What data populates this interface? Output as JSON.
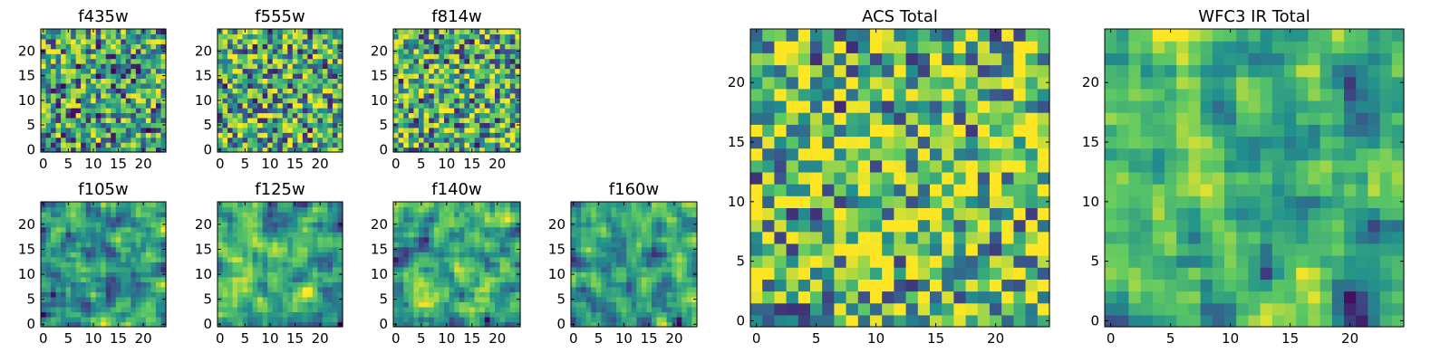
{
  "chart_data": [
    {
      "type": "heatmap",
      "title": "f435w",
      "grid": 25,
      "seed": 11,
      "xticks": [
        "0",
        "5",
        "10",
        "15",
        "20"
      ],
      "yticks": [
        "0",
        "5",
        "10",
        "15",
        "20"
      ],
      "smooth": false,
      "bias": 0.0,
      "xlim": [
        0,
        25
      ],
      "ylim": [
        0,
        25
      ]
    },
    {
      "type": "heatmap",
      "title": "f555w",
      "grid": 25,
      "seed": 23,
      "xticks": [
        "0",
        "5",
        "10",
        "15",
        "20"
      ],
      "yticks": [
        "0",
        "5",
        "10",
        "15",
        "20"
      ],
      "smooth": false,
      "bias": 0.05,
      "xlim": [
        0,
        25
      ],
      "ylim": [
        0,
        25
      ]
    },
    {
      "type": "heatmap",
      "title": "f814w",
      "grid": 25,
      "seed": 37,
      "xticks": [
        "0",
        "5",
        "10",
        "15",
        "20"
      ],
      "yticks": [
        "0",
        "5",
        "10",
        "15",
        "20"
      ],
      "smooth": false,
      "bias": 0.05,
      "xlim": [
        0,
        25
      ],
      "ylim": [
        0,
        25
      ]
    },
    {
      "type": "heatmap",
      "title": "f105w",
      "grid": 25,
      "seed": 41,
      "xticks": [
        "0",
        "5",
        "10",
        "15",
        "20"
      ],
      "yticks": [
        "0",
        "5",
        "10",
        "15",
        "20"
      ],
      "smooth": true,
      "bias": 0.0,
      "xlim": [
        0,
        25
      ],
      "ylim": [
        0,
        25
      ]
    },
    {
      "type": "heatmap",
      "title": "f125w",
      "grid": 25,
      "seed": 53,
      "xticks": [
        "0",
        "5",
        "10",
        "15",
        "20"
      ],
      "yticks": [
        "0",
        "5",
        "10",
        "15",
        "20"
      ],
      "smooth": true,
      "bias": 0.0,
      "xlim": [
        0,
        25
      ],
      "ylim": [
        0,
        25
      ]
    },
    {
      "type": "heatmap",
      "title": "f140w",
      "grid": 25,
      "seed": 67,
      "xticks": [
        "0",
        "5",
        "10",
        "15",
        "20"
      ],
      "yticks": [
        "0",
        "5",
        "10",
        "15",
        "20"
      ],
      "smooth": true,
      "bias": 0.0,
      "xlim": [
        0,
        25
      ],
      "ylim": [
        0,
        25
      ]
    },
    {
      "type": "heatmap",
      "title": "f160w",
      "grid": 25,
      "seed": 79,
      "xticks": [
        "0",
        "5",
        "10",
        "15",
        "20"
      ],
      "yticks": [
        "0",
        "5",
        "10",
        "15",
        "20"
      ],
      "smooth": true,
      "bias": -0.05,
      "xlim": [
        0,
        25
      ],
      "ylim": [
        0,
        25
      ]
    },
    {
      "type": "heatmap",
      "title": "ACS Total",
      "grid": 25,
      "seed": 97,
      "xticks": [
        "0",
        "5",
        "10",
        "15",
        "20"
      ],
      "yticks": [
        "0",
        "5",
        "10",
        "15",
        "20"
      ],
      "smooth": false,
      "bias": 0.12,
      "xlim": [
        0,
        25
      ],
      "ylim": [
        0,
        25
      ]
    },
    {
      "type": "heatmap",
      "title": "WFC3 IR Total",
      "grid": 25,
      "seed": 131,
      "xticks": [
        "0",
        "5",
        "10",
        "15",
        "20"
      ],
      "yticks": [
        "0",
        "5",
        "10",
        "15",
        "20"
      ],
      "smooth": true,
      "bias": 0.05,
      "xlim": [
        0,
        25
      ],
      "ylim": [
        0,
        25
      ]
    }
  ],
  "colormap": [
    "#440154",
    "#3b528b",
    "#21908d",
    "#5dc963",
    "#fde725"
  ]
}
